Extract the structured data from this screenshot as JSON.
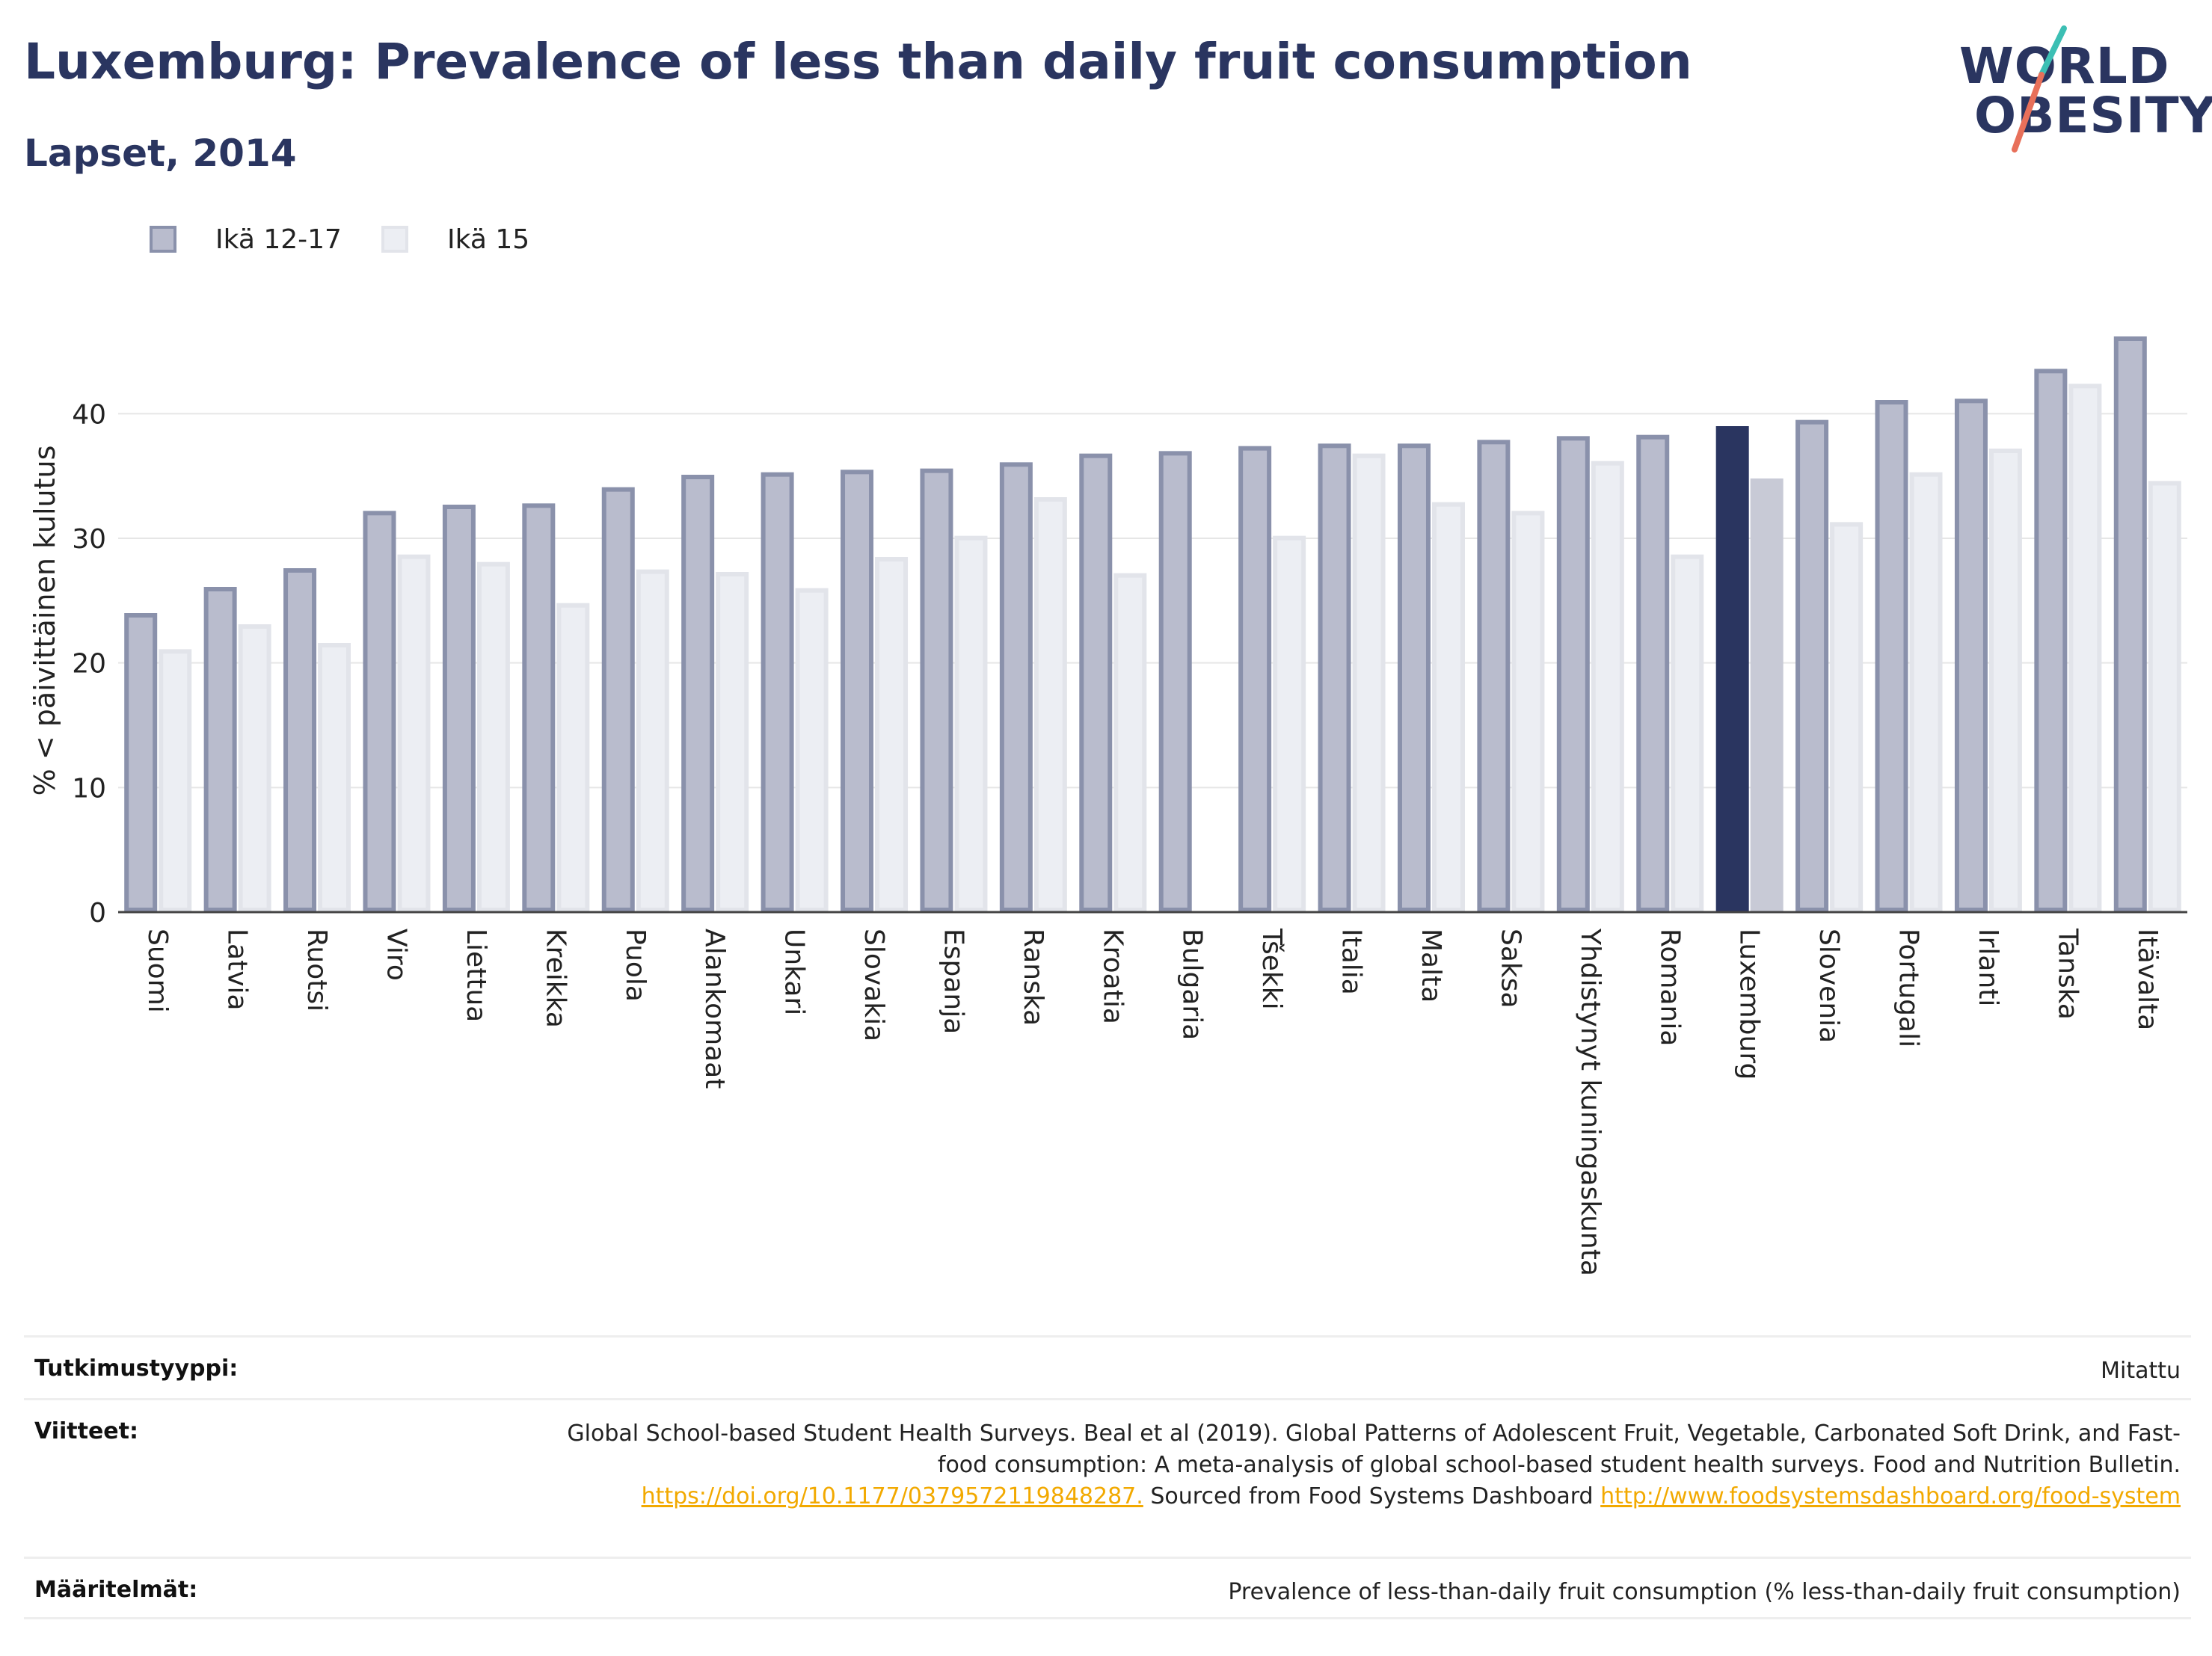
{
  "header": {
    "title": "Luxemburg: Prevalence of less than daily fruit consumption",
    "subtitle": "Lapset, 2014"
  },
  "logo": {
    "line1": "WORLD",
    "line2": "OBESITY"
  },
  "colors": {
    "series1_fill": "#b9bccd",
    "series1_stroke": "#8a91ab",
    "series2_fill": "#eceef3",
    "series2_stroke": "#e2e4ea",
    "highlight1": "#2a3560",
    "highlight2": "#c8cad6",
    "title": "#2a3560",
    "link": "#f2a900"
  },
  "chart_data": {
    "type": "bar",
    "ylabel": "% < päivittäinen kulutus",
    "ylim": [
      0,
      48
    ],
    "yticks": [
      0,
      10,
      20,
      30,
      40
    ],
    "highlight": "Luxemburg",
    "categories": [
      "Suomi",
      "Latvia",
      "Ruotsi",
      "Viro",
      "Liettua",
      "Kreikka",
      "Puola",
      "Alankomaat",
      "Unkari",
      "Slovakia",
      "Espanja",
      "Ranska",
      "Kroatia",
      "Bulgaria",
      "Tšekki",
      "Italia",
      "Malta",
      "Saksa",
      "Yhdistynyt kuningaskunta",
      "Romania",
      "Luxemburg",
      "Slovenia",
      "Portugali",
      "Irlanti",
      "Tanska",
      "Itävalta"
    ],
    "series": [
      {
        "name": "Ikä 12-17",
        "values": [
          24.0,
          26.1,
          27.6,
          32.2,
          32.7,
          32.8,
          34.1,
          35.1,
          35.3,
          35.5,
          35.6,
          36.1,
          36.8,
          37.0,
          37.4,
          37.6,
          37.6,
          37.9,
          38.2,
          38.3,
          39.0,
          39.5,
          41.1,
          41.2,
          43.6,
          46.2
        ]
      },
      {
        "name": "Ikä 15",
        "values": [
          21.1,
          23.1,
          21.6,
          28.7,
          28.1,
          24.8,
          27.5,
          27.3,
          26.0,
          28.5,
          30.2,
          33.3,
          27.2,
          null,
          30.2,
          36.8,
          32.9,
          32.2,
          36.2,
          28.7,
          34.8,
          31.3,
          35.3,
          37.2,
          42.4,
          34.6
        ]
      }
    ]
  },
  "meta": {
    "study_type_key": "Tutkimustyyppi:",
    "study_type_val": "Mitattu",
    "references_key": "Viitteet:",
    "references_text1": "Global School-based Student Health Surveys. Beal et al (2019). Global Patterns of Adolescent Fruit, Vegetable, Carbonated Soft Drink, and Fast-food consumption: A meta-analysis of global school-based student health surveys. Food and Nutrition Bulletin.",
    "references_link1": "https://doi.org/10.1177/0379572119848287.",
    "references_text2": "Sourced from Food Systems Dashboard",
    "references_link2": "http://www.foodsystemsdashboard.org/food-system",
    "definitions_key": "Määritelmät:",
    "definitions_val": "Prevalence of less-than-daily fruit consumption (% less-than-daily fruit consumption)"
  }
}
